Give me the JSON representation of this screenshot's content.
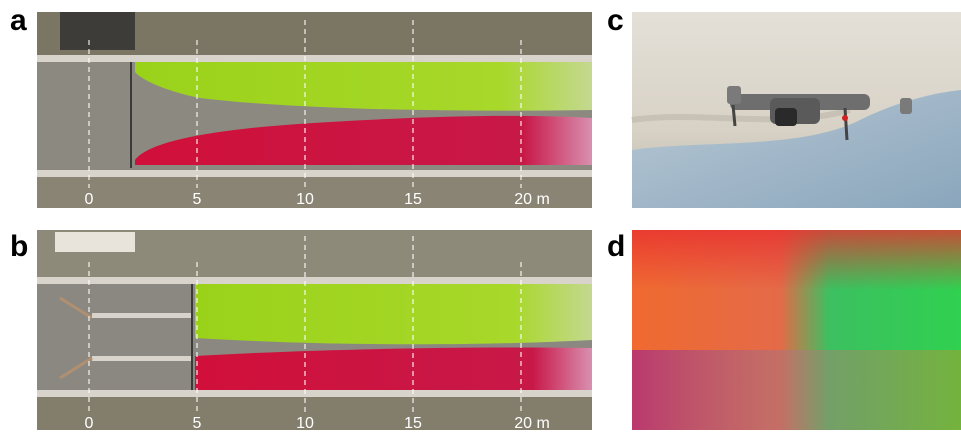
{
  "panels": [
    {
      "label": "a",
      "distance_labels": [
        "0",
        "5",
        "10",
        "15",
        "20 m"
      ]
    },
    {
      "label": "b",
      "distance_labels": [
        "0",
        "5",
        "10",
        "15",
        "20 m"
      ]
    },
    {
      "label": "c"
    },
    {
      "label": "d"
    }
  ]
}
